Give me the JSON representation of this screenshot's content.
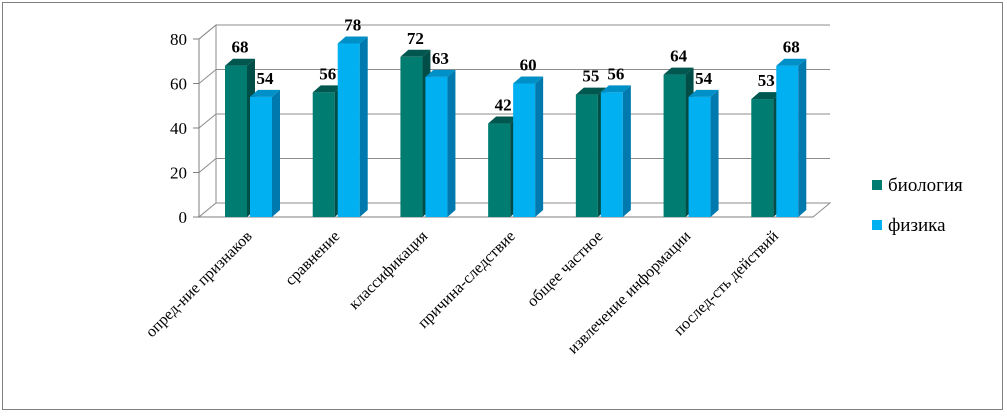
{
  "chart_data": {
    "type": "bar",
    "categories": [
      "опред-ние признаков",
      "сравнение",
      "классификация",
      "причина-следствие",
      "общее частное",
      "извлечение информации",
      "послед-сть действий"
    ],
    "series": [
      {
        "name": "биология",
        "values": [
          68,
          56,
          72,
          42,
          55,
          64,
          53
        ],
        "color": "#007D70",
        "top_color": "#00574F",
        "side_color": "#004E47"
      },
      {
        "name": "физика",
        "values": [
          54,
          78,
          63,
          60,
          56,
          54,
          68
        ],
        "color": "#00B0F0",
        "top_color": "#0090C8",
        "side_color": "#007AAE"
      }
    ],
    "y_ticks": [
      "0",
      "20",
      "40",
      "60",
      "80"
    ],
    "ylim": [
      0,
      80
    ],
    "grid": true,
    "legend_position": "right",
    "three_d": true
  }
}
